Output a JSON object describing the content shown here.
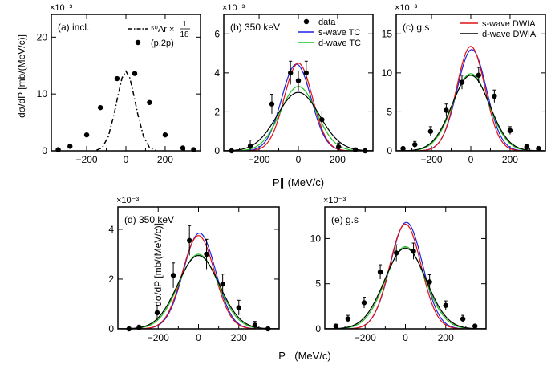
{
  "figure": {
    "ylabel_top": "dσ/dP [mb/(MeV/c)]",
    "ylabel_bottom": "dσ/dP [mb/(MeV/c)]",
    "xlabel_top": "P∥ (MeV/c)",
    "xlabel_bottom": "P⊥(MeV/c)"
  },
  "chart_data": [
    {
      "id": "a",
      "type": "scatter",
      "title": "(a) incl.",
      "scale_label": "×10⁻³",
      "xlim": [
        -380,
        380
      ],
      "ylim": [
        0,
        24
      ],
      "xticks": [
        -200,
        0,
        200
      ],
      "yticks": [
        0,
        10,
        20
      ],
      "legend": {
        "items": [
          {
            "key": "ar",
            "text": "⁵⁰Ar ×",
            "frac_num": "1",
            "frac_den": "18",
            "style": "dashdot"
          },
          {
            "key": "p2p",
            "text": "(p,2p)",
            "style": "marker"
          }
        ]
      },
      "series": [
        {
          "name": "(p,2p)",
          "kind": "points",
          "x": [
            -345,
            -285,
            -200,
            -130,
            -45,
            45,
            120,
            200,
            290,
            345
          ],
          "y": [
            0.2,
            0.8,
            2.8,
            7.6,
            12.7,
            13.6,
            8.5,
            2.8,
            0.5,
            0.2
          ]
        },
        {
          "name": "50Ar x 1/18",
          "kind": "curve",
          "style": "dashdot",
          "color": "#000000",
          "x": [
            -150,
            -120,
            -90,
            -60,
            -40,
            -20,
            0,
            20,
            40,
            60,
            90,
            120,
            150
          ],
          "y": [
            0.1,
            0.6,
            2.5,
            6.5,
            9.8,
            12.8,
            14.0,
            12.8,
            9.8,
            6.5,
            2.5,
            0.6,
            0.1
          ]
        }
      ]
    },
    {
      "id": "b",
      "type": "scatter",
      "title": "(b) 350 keV",
      "scale_label": "×10⁻³",
      "xlim": [
        -380,
        380
      ],
      "ylim": [
        0,
        7
      ],
      "xticks": [
        -200,
        0,
        200
      ],
      "yticks": [
        0,
        2,
        4,
        6
      ],
      "legend": {
        "items": [
          {
            "key": "data",
            "text": "data",
            "style": "marker"
          },
          {
            "key": "s",
            "text": "s-wave TC",
            "color": "#2020e0"
          },
          {
            "key": "d",
            "text": "d-wave TC",
            "color": "#20c020"
          }
        ]
      },
      "series": [
        {
          "name": "data",
          "kind": "points",
          "x": [
            -340,
            -245,
            -135,
            -40,
            0,
            40,
            120,
            205,
            290,
            340
          ],
          "y": [
            0.0,
            0.25,
            2.4,
            4.0,
            3.6,
            4.0,
            1.6,
            0.2,
            0.05,
            0.0
          ],
          "err": [
            0.05,
            0.3,
            0.5,
            0.6,
            0.5,
            0.6,
            0.4,
            0.2,
            0.1,
            0.05
          ]
        },
        {
          "name": "s-wave TC",
          "kind": "gauss",
          "color": "#2020e0",
          "amp": 4.45,
          "mu": -10,
          "sigma": 75
        },
        {
          "name": "red s-wave",
          "kind": "gauss",
          "color": "#e01010",
          "amp": 4.5,
          "mu": 0,
          "sigma": 72
        },
        {
          "name": "d-wave TC",
          "kind": "gauss",
          "color": "#20c020",
          "amp": 3.3,
          "mu": 0,
          "sigma": 92
        },
        {
          "name": "black d-wave",
          "kind": "gauss",
          "color": "#000000",
          "amp": 3.0,
          "mu": 0,
          "sigma": 108
        }
      ]
    },
    {
      "id": "c",
      "type": "scatter",
      "title": "(c) g.s",
      "scale_label": "×10⁻³",
      "xlim": [
        -380,
        380
      ],
      "ylim": [
        0,
        17.5
      ],
      "xticks": [
        -200,
        0,
        200
      ],
      "yticks": [
        0,
        5,
        10,
        15
      ],
      "legend": {
        "items": [
          {
            "key": "s",
            "text": "s-wave DWIA",
            "color": "#e01010"
          },
          {
            "key": "d",
            "text": "d-wave DWIA",
            "color": "#000000"
          }
        ]
      },
      "series": [
        {
          "name": "data",
          "kind": "points",
          "x": [
            -345,
            -285,
            -205,
            -125,
            -45,
            40,
            120,
            200,
            285,
            345
          ],
          "y": [
            0.3,
            0.8,
            2.5,
            5.2,
            8.8,
            9.7,
            7.0,
            2.6,
            0.5,
            0.3
          ],
          "err": [
            0.2,
            0.4,
            0.6,
            0.8,
            0.9,
            1.0,
            0.8,
            0.5,
            0.3,
            0.2
          ]
        },
        {
          "name": "blue",
          "kind": "gauss",
          "color": "#2020e0",
          "amp": 13.0,
          "mu": 5,
          "sigma": 75
        },
        {
          "name": "s-wave DWIA",
          "kind": "gauss",
          "color": "#e01010",
          "amp": 13.4,
          "mu": 0,
          "sigma": 72
        },
        {
          "name": "green",
          "kind": "gauss",
          "color": "#20c020",
          "amp": 9.9,
          "mu": 0,
          "sigma": 92
        },
        {
          "name": "d-wave DWIA",
          "kind": "gauss",
          "color": "#000000",
          "amp": 9.7,
          "mu": 0,
          "sigma": 96
        }
      ]
    },
    {
      "id": "d",
      "type": "scatter",
      "title": "(d) 350 keV",
      "scale_label": "×10⁻³",
      "xlim": [
        -400,
        400
      ],
      "ylim": [
        0,
        4.9
      ],
      "xticks": [
        -200,
        0,
        200
      ],
      "yticks": [
        0,
        2,
        4
      ],
      "series": [
        {
          "name": "data",
          "kind": "points",
          "x": [
            -345,
            -295,
            -205,
            -125,
            -45,
            40,
            120,
            200,
            280,
            345
          ],
          "y": [
            0.0,
            0.05,
            0.65,
            2.15,
            3.55,
            3.0,
            1.8,
            0.85,
            0.15,
            0.0
          ],
          "err": [
            0.05,
            0.1,
            0.3,
            0.5,
            0.6,
            0.6,
            0.4,
            0.3,
            0.15,
            0.05
          ]
        },
        {
          "name": "blue",
          "kind": "gauss",
          "color": "#2020e0",
          "amp": 3.85,
          "mu": 5,
          "sigma": 80
        },
        {
          "name": "red",
          "kind": "gauss",
          "color": "#e01010",
          "amp": 3.75,
          "mu": 0,
          "sigma": 80
        },
        {
          "name": "green",
          "kind": "gauss",
          "color": "#20c020",
          "amp": 3.0,
          "mu": 0,
          "sigma": 98
        },
        {
          "name": "black",
          "kind": "gauss",
          "color": "#000000",
          "amp": 2.95,
          "mu": 0,
          "sigma": 103
        }
      ]
    },
    {
      "id": "e",
      "type": "scatter",
      "title": "(e) g.s",
      "scale_label": "×10⁻³",
      "xlim": [
        -400,
        400
      ],
      "ylim": [
        0,
        13.5
      ],
      "xticks": [
        -200,
        0,
        200
      ],
      "yticks": [
        0,
        5,
        10
      ],
      "series": [
        {
          "name": "data",
          "kind": "points",
          "x": [
            -345,
            -285,
            -205,
            -125,
            -45,
            40,
            120,
            200,
            285,
            345
          ],
          "y": [
            0.3,
            1.1,
            2.9,
            6.3,
            8.4,
            8.6,
            5.2,
            2.6,
            1.1,
            0.3
          ],
          "err": [
            0.2,
            0.4,
            0.6,
            0.8,
            0.9,
            0.9,
            0.8,
            0.5,
            0.4,
            0.2
          ]
        },
        {
          "name": "blue",
          "kind": "gauss",
          "color": "#2020e0",
          "amp": 11.8,
          "mu": 5,
          "sigma": 80
        },
        {
          "name": "red",
          "kind": "gauss",
          "color": "#e01010",
          "amp": 11.6,
          "mu": 0,
          "sigma": 78
        },
        {
          "name": "green",
          "kind": "gauss",
          "color": "#20c020",
          "amp": 9.1,
          "mu": 0,
          "sigma": 98
        },
        {
          "name": "black",
          "kind": "gauss",
          "color": "#000000",
          "amp": 8.95,
          "mu": 0,
          "sigma": 103
        }
      ]
    }
  ]
}
